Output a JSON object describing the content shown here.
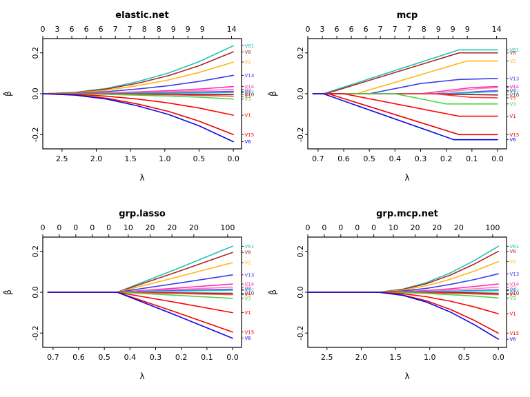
{
  "figure": {
    "background": "#ffffff"
  },
  "chart_data": [
    {
      "type": "line",
      "title": "elastic.net",
      "xlabel": "λ",
      "ylabel": "β̂",
      "x_ticks": [
        2.5,
        2.0,
        1.5,
        1.0,
        0.5,
        0.0
      ],
      "x_domain": [
        2.78,
        -0.12
      ],
      "y_ticks": [
        -0.2,
        0.0,
        0.2
      ],
      "y_domain": [
        -0.27,
        0.27
      ],
      "grid": false,
      "top_axis": {
        "labels": [
          "0",
          "3",
          "6",
          "6",
          "6",
          "7",
          "7",
          "8",
          "8",
          "9",
          "9",
          "9",
          "14"
        ],
        "fracs": [
          0,
          0.073,
          0.146,
          0.219,
          0.292,
          0.365,
          0.438,
          0.511,
          0.584,
          0.657,
          0.73,
          0.803,
          0.95
        ]
      },
      "x": [
        2.78,
        2.3,
        1.85,
        1.4,
        0.95,
        0.5,
        0.0
      ],
      "series": [
        {
          "name": "V61",
          "color": "#1FC5B7",
          "y": [
            0,
            0.007,
            0.026,
            0.059,
            0.101,
            0.157,
            0.235
          ]
        },
        {
          "name": "V8",
          "color": "#B22222",
          "y": [
            0,
            0.006,
            0.023,
            0.051,
            0.088,
            0.137,
            0.205
          ]
        },
        {
          "name": "V2",
          "color": "#FFB612",
          "y": [
            0,
            0.005,
            0.017,
            0.039,
            0.067,
            0.104,
            0.155
          ]
        },
        {
          "name": "V13",
          "color": "#3B3BF0",
          "y": [
            0,
            0.003,
            0.01,
            0.023,
            0.039,
            0.06,
            0.09
          ]
        },
        {
          "name": "V14",
          "color": "#FF2DBE",
          "y": [
            0,
            0.001,
            0.004,
            0.009,
            0.015,
            0.023,
            0.035
          ]
        },
        {
          "name": "V9",
          "color": "#FF7FAA",
          "y": [
            0,
            0.001,
            0.003,
            0.006,
            0.01,
            0.015,
            0.022
          ]
        },
        {
          "name": "V4",
          "color": "#9B30FF",
          "y": [
            0,
            0,
            0.001,
            0.003,
            0.005,
            0.008,
            0.012
          ]
        },
        {
          "name": "V12",
          "color": "#00CED1",
          "y": [
            0,
            0,
            0.001,
            0.002,
            0.003,
            0.004,
            0.006
          ]
        },
        {
          "name": "V10",
          "color": "#8B1A1A",
          "y": [
            0,
            0,
            0,
            -0.001,
            -0.002,
            -0.003,
            -0.004
          ]
        },
        {
          "name": "V5",
          "color": "#FF4040",
          "y": [
            0,
            0,
            -0.001,
            -0.003,
            -0.005,
            -0.008,
            -0.012
          ]
        },
        {
          "name": "V3",
          "color": "#46D846",
          "y": [
            0,
            -0.001,
            -0.003,
            -0.007,
            -0.011,
            -0.017,
            -0.026
          ]
        },
        {
          "name": "V1",
          "color": "#FF0000",
          "y": [
            0,
            -0.003,
            -0.012,
            -0.026,
            -0.045,
            -0.07,
            -0.105
          ]
        },
        {
          "name": "V15",
          "color": "#EE0000",
          "y": [
            0,
            -0.006,
            -0.022,
            -0.05,
            -0.086,
            -0.134,
            -0.2
          ]
        },
        {
          "name": "V6",
          "color": "#0A0AE6",
          "y": [
            0,
            -0.007,
            -0.026,
            -0.059,
            -0.101,
            -0.157,
            -0.235
          ]
        }
      ]
    },
    {
      "type": "line",
      "title": "mcp",
      "xlabel": "λ",
      "ylabel": "β̂",
      "x_ticks": [
        0.7,
        0.6,
        0.5,
        0.4,
        0.3,
        0.2,
        0.1,
        0.0
      ],
      "x_domain": [
        0.74,
        -0.035
      ],
      "y_ticks": [
        -0.2,
        0.0,
        0.2
      ],
      "y_domain": [
        -0.27,
        0.27
      ],
      "grid": false,
      "top_axis": {
        "labels": [
          "0",
          "3",
          "6",
          "6",
          "6",
          "7",
          "7",
          "7",
          "8",
          "9",
          "9",
          "9",
          "14"
        ],
        "fracs": [
          0,
          0.073,
          0.146,
          0.219,
          0.292,
          0.365,
          0.438,
          0.511,
          0.584,
          0.657,
          0.73,
          0.803,
          0.95
        ]
      },
      "x": [
        0.72,
        0.45,
        0.22,
        0.0
      ],
      "series": [
        {
          "name": "V61",
          "color": "#1FC5B7",
          "x": [
            0.72,
            0.68,
            0.15,
            0.0
          ],
          "y": [
            0,
            0,
            0.215,
            0.215
          ]
        },
        {
          "name": "V8",
          "color": "#B22222",
          "x": [
            0.72,
            0.67,
            0.15,
            0.0
          ],
          "y": [
            0,
            0,
            0.2,
            0.2
          ]
        },
        {
          "name": "V2",
          "color": "#FFB612",
          "x": [
            0.72,
            0.55,
            0.12,
            0.0
          ],
          "y": [
            0,
            0,
            0.16,
            0.16
          ]
        },
        {
          "name": "V13",
          "color": "#3B3BF0",
          "x": [
            0.72,
            0.5,
            0.3,
            0.15,
            0.0
          ],
          "y": [
            0,
            0,
            0.05,
            0.07,
            0.075
          ]
        },
        {
          "name": "V14",
          "color": "#FF2DBE",
          "x": [
            0.72,
            0.3,
            0.1,
            0.0
          ],
          "y": [
            0,
            0,
            0.03,
            0.035
          ]
        },
        {
          "name": "V9",
          "color": "#FF7FAA",
          "x": [
            0.72,
            0.25,
            0.08,
            0.0
          ],
          "y": [
            0,
            0,
            0.025,
            0.03
          ]
        },
        {
          "name": "V4",
          "color": "#9B30FF",
          "x": [
            0.72,
            0.2,
            0.06,
            0.0
          ],
          "y": [
            0,
            0,
            0.012,
            0.015
          ]
        },
        {
          "name": "V12",
          "color": "#00CED1",
          "x": [
            0.72,
            0.18,
            0.05,
            0.0
          ],
          "y": [
            0,
            0,
            0.008,
            0.01
          ]
        },
        {
          "name": "V10",
          "color": "#8B1A1A",
          "x": [
            0.72,
            0.3,
            0.0
          ],
          "y": [
            0,
            0,
            -0.006
          ]
        },
        {
          "name": "V5",
          "color": "#FF4040",
          "x": [
            0.72,
            0.25,
            0.1,
            0.0
          ],
          "y": [
            0,
            0,
            -0.018,
            -0.02
          ]
        },
        {
          "name": "V3",
          "color": "#46D846",
          "x": [
            0.72,
            0.4,
            0.2,
            0.0
          ],
          "y": [
            0,
            0,
            -0.05,
            -0.05
          ]
        },
        {
          "name": "V1",
          "color": "#FF0000",
          "x": [
            0.72,
            0.6,
            0.15,
            0.0
          ],
          "y": [
            0,
            0,
            -0.11,
            -0.11
          ]
        },
        {
          "name": "V15",
          "color": "#EE0000",
          "x": [
            0.72,
            0.66,
            0.15,
            0.0
          ],
          "y": [
            0,
            0,
            -0.2,
            -0.2
          ]
        },
        {
          "name": "V6",
          "color": "#0A0AE6",
          "x": [
            0.72,
            0.68,
            0.17,
            0.0
          ],
          "y": [
            0,
            0,
            -0.225,
            -0.225
          ]
        }
      ]
    },
    {
      "type": "line",
      "title": "grp.lasso",
      "xlabel": "λ",
      "ylabel": "β̂",
      "x_ticks": [
        0.7,
        0.6,
        0.5,
        0.4,
        0.3,
        0.2,
        0.1,
        0.0
      ],
      "x_domain": [
        0.74,
        -0.035
      ],
      "y_ticks": [
        -0.2,
        0.0,
        0.2
      ],
      "y_domain": [
        -0.27,
        0.27
      ],
      "grid": false,
      "top_axis": {
        "labels": [
          "0",
          "0",
          "0",
          "0",
          "0",
          "10",
          "20",
          "20",
          "20",
          "100"
        ],
        "fracs": [
          0,
          0.083,
          0.166,
          0.249,
          0.332,
          0.43,
          0.54,
          0.65,
          0.76,
          0.93
        ]
      },
      "x": [
        0.72,
        0.45,
        0.22,
        0.0
      ],
      "series": [
        {
          "name": "V61",
          "color": "#1FC5B7",
          "y": [
            0,
            0,
            0.113,
            0.225
          ]
        },
        {
          "name": "V8",
          "color": "#B22222",
          "y": [
            0,
            0,
            0.098,
            0.195
          ]
        },
        {
          "name": "V2",
          "color": "#FFB612",
          "y": [
            0,
            0,
            0.073,
            0.145
          ]
        },
        {
          "name": "V13",
          "color": "#3B3BF0",
          "y": [
            0,
            0,
            0.043,
            0.085
          ]
        },
        {
          "name": "V14",
          "color": "#FF2DBE",
          "y": [
            0,
            0,
            0.02,
            0.04
          ]
        },
        {
          "name": "V9",
          "color": "#FF7FAA",
          "y": [
            0,
            0,
            0.013,
            0.025
          ]
        },
        {
          "name": "V4",
          "color": "#9B30FF",
          "y": [
            0,
            0,
            0.008,
            0.015
          ]
        },
        {
          "name": "V12",
          "color": "#00CED1",
          "y": [
            0,
            0,
            0.005,
            0.01
          ]
        },
        {
          "name": "V10",
          "color": "#8B1A1A",
          "y": [
            0,
            0,
            -0.003,
            -0.005
          ]
        },
        {
          "name": "V5",
          "color": "#FF4040",
          "y": [
            0,
            0,
            -0.006,
            -0.012
          ]
        },
        {
          "name": "V3",
          "color": "#46D846",
          "y": [
            0,
            0,
            -0.015,
            -0.03
          ]
        },
        {
          "name": "V1",
          "color": "#FF0000",
          "y": [
            0,
            0,
            -0.05,
            -0.1
          ]
        },
        {
          "name": "V15",
          "color": "#EE0000",
          "y": [
            0,
            0,
            -0.098,
            -0.195
          ]
        },
        {
          "name": "V6",
          "color": "#0A0AE6",
          "y": [
            0,
            0,
            -0.113,
            -0.225
          ]
        }
      ]
    },
    {
      "type": "line",
      "title": "grp.mcp.net",
      "xlabel": "λ",
      "ylabel": "β̂",
      "x_ticks": [
        2.5,
        2.0,
        1.5,
        1.0,
        0.5,
        0.0
      ],
      "x_domain": [
        2.78,
        -0.12
      ],
      "y_ticks": [
        -0.2,
        0.0,
        0.2
      ],
      "y_domain": [
        -0.27,
        0.27
      ],
      "grid": false,
      "top_axis": {
        "labels": [
          "0",
          "0",
          "0",
          "0",
          "0",
          "10",
          "20",
          "20",
          "20",
          "100"
        ],
        "fracs": [
          0,
          0.083,
          0.166,
          0.249,
          0.332,
          0.43,
          0.54,
          0.65,
          0.76,
          0.93
        ]
      },
      "x": [
        2.78,
        1.75,
        1.4,
        1.05,
        0.7,
        0.35,
        0.0
      ],
      "series": [
        {
          "name": "V61",
          "color": "#1FC5B7",
          "y": [
            0,
            0,
            0.015,
            0.047,
            0.095,
            0.155,
            0.225
          ]
        },
        {
          "name": "V8",
          "color": "#B22222",
          "y": [
            0,
            0,
            0.013,
            0.042,
            0.084,
            0.138,
            0.2
          ]
        },
        {
          "name": "V2",
          "color": "#FFB612",
          "y": [
            0,
            0,
            0.01,
            0.032,
            0.063,
            0.104,
            0.15
          ]
        },
        {
          "name": "V13",
          "color": "#3B3BF0",
          "y": [
            0,
            0,
            0.006,
            0.019,
            0.038,
            0.062,
            0.09
          ]
        },
        {
          "name": "V14",
          "color": "#FF2DBE",
          "y": [
            0,
            0,
            0.003,
            0.008,
            0.017,
            0.028,
            0.04
          ]
        },
        {
          "name": "V9",
          "color": "#FF7FAA",
          "y": [
            0,
            0,
            0.002,
            0.005,
            0.011,
            0.017,
            0.025
          ]
        },
        {
          "name": "V4",
          "color": "#9B30FF",
          "y": [
            0,
            0,
            0.001,
            0.003,
            0.005,
            0.008,
            0.012
          ]
        },
        {
          "name": "V12",
          "color": "#00CED1",
          "y": [
            0,
            0,
            0.001,
            0.002,
            0.003,
            0.006,
            0.008
          ]
        },
        {
          "name": "V10",
          "color": "#8B1A1A",
          "y": [
            0,
            0,
            0,
            -0.001,
            -0.002,
            -0.003,
            -0.005
          ]
        },
        {
          "name": "V5",
          "color": "#FF4040",
          "y": [
            0,
            0,
            -0.001,
            -0.003,
            -0.005,
            -0.008,
            -0.012
          ]
        },
        {
          "name": "V3",
          "color": "#46D846",
          "y": [
            0,
            0,
            -0.002,
            -0.006,
            -0.012,
            -0.019,
            -0.028
          ]
        },
        {
          "name": "V1",
          "color": "#FF0000",
          "y": [
            0,
            0,
            -0.007,
            -0.022,
            -0.044,
            -0.072,
            -0.105
          ]
        },
        {
          "name": "V15",
          "color": "#EE0000",
          "y": [
            0,
            0,
            -0.013,
            -0.042,
            -0.084,
            -0.138,
            -0.2
          ]
        },
        {
          "name": "V6",
          "color": "#0A0AE6",
          "y": [
            0,
            0,
            -0.015,
            -0.048,
            -0.097,
            -0.159,
            -0.23
          ]
        }
      ]
    }
  ]
}
